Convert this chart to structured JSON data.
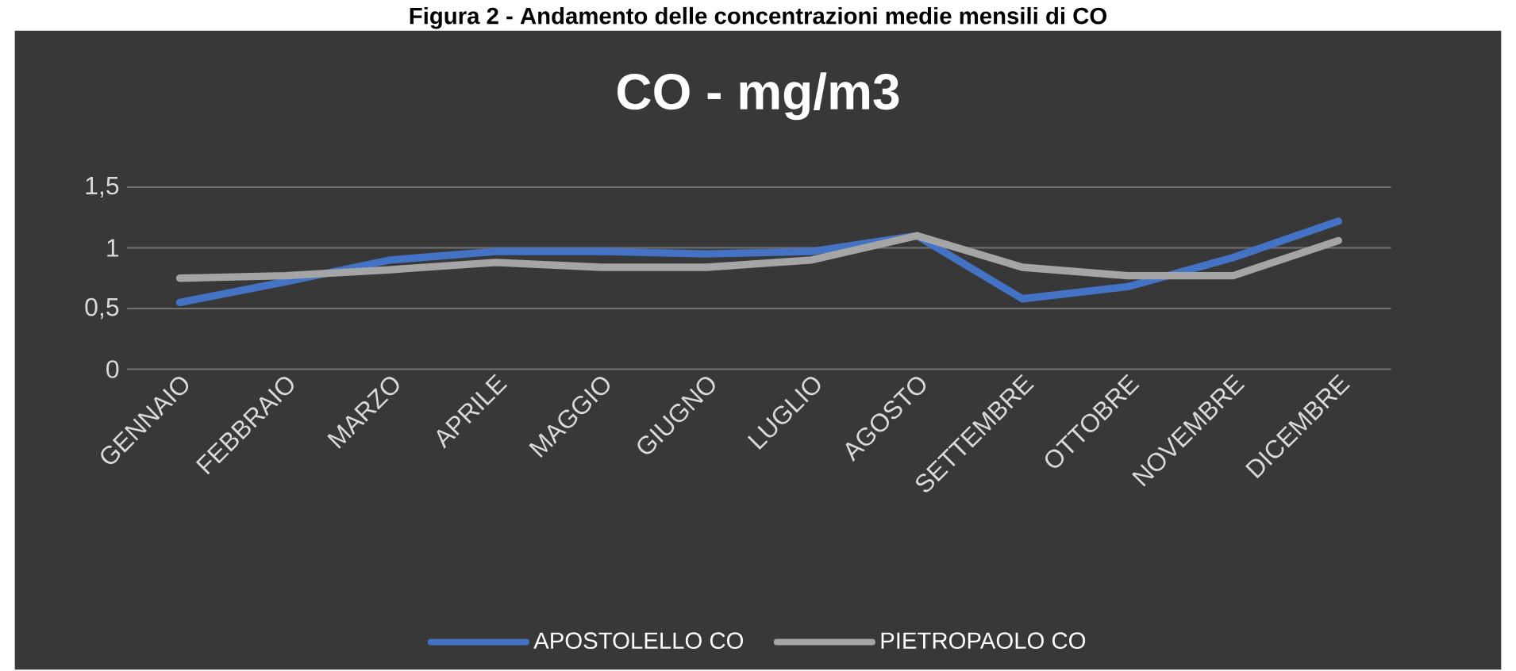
{
  "chart_data": {
    "type": "line",
    "title": "CO - mg/m3",
    "annotations": [
      "Figura 2 - Andamento delle concentrazioni medie mensili di CO"
    ],
    "categories": [
      "GENNAIO",
      "FEBBRAIO",
      "MARZO",
      "APRILE",
      "MAGGIO",
      "GIUGNO",
      "LUGLIO",
      "AGOSTO",
      "SETTEMBRE",
      "OTTOBRE",
      "NOVEMBRE",
      "DICEMBRE"
    ],
    "series": [
      {
        "name": "APOSTOLELLO CO",
        "color": "#4472c4",
        "values": [
          0.55,
          0.72,
          0.9,
          0.97,
          0.97,
          0.95,
          0.97,
          1.1,
          0.58,
          0.68,
          0.92,
          1.22
        ]
      },
      {
        "name": "PIETROPAOLO CO",
        "color": "#a5a5a5",
        "values": [
          0.75,
          0.77,
          0.82,
          0.88,
          0.84,
          0.84,
          0.9,
          1.1,
          0.84,
          0.77,
          0.77,
          1.06
        ]
      }
    ],
    "ylim": [
      0,
      1.5
    ],
    "yticks": [
      {
        "value": 0,
        "label": "0"
      },
      {
        "value": 0.5,
        "label": "0,5"
      },
      {
        "value": 1,
        "label": "1"
      },
      {
        "value": 1.5,
        "label": "1,5"
      }
    ],
    "grid": "y",
    "legend": "bottom",
    "marker": "none",
    "line_style": "solid"
  }
}
